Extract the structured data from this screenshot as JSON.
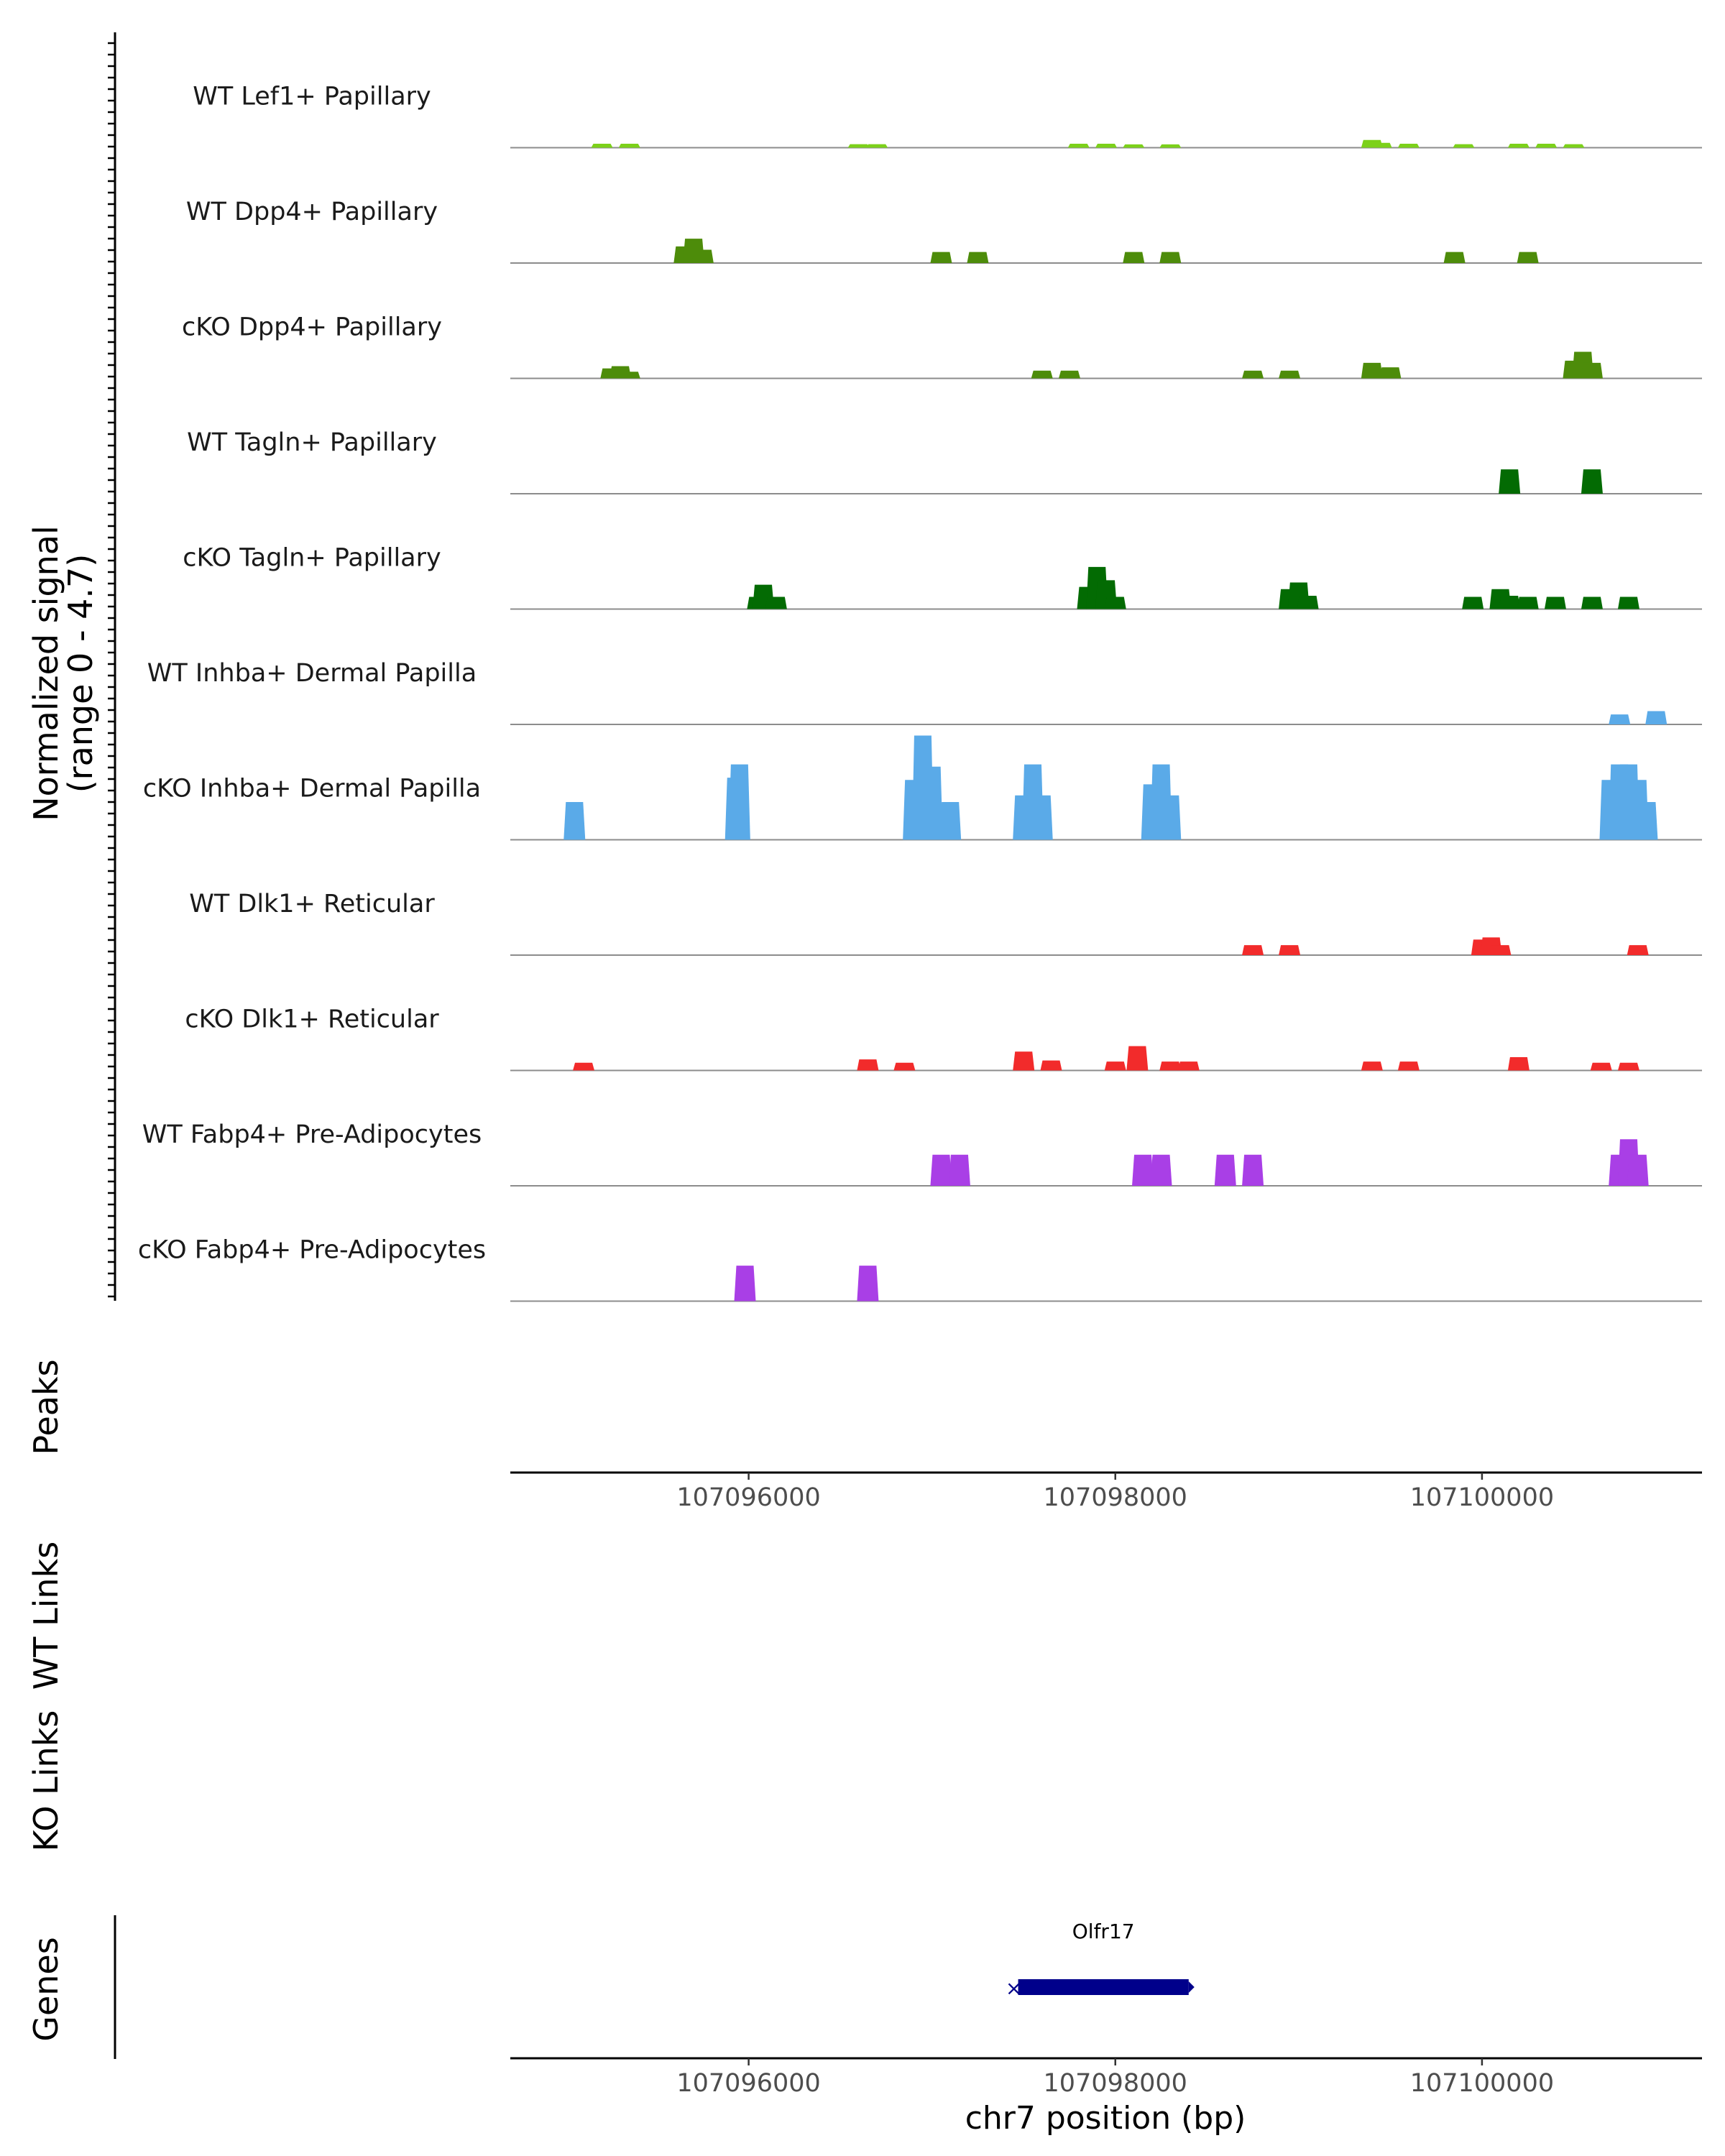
{
  "chart_data": {
    "type": "area",
    "title": "",
    "chromosome": "chr7",
    "xlim": [
      107094700,
      107101200
    ],
    "xticks": [
      107096000,
      107098000,
      107100000
    ],
    "xtick_labels": [
      "107096000",
      "107098000",
      "107100000"
    ],
    "xlabel": "chr7 position (bp)",
    "ylabel_line1": "Normalized signal",
    "ylabel_line2": "(range 0 - 4.7)",
    "ylim": [
      0,
      4.7
    ],
    "section_labels": {
      "peaks": "Peaks",
      "wt_links": "WT Links",
      "ko_links": "KO Links",
      "genes": "Genes"
    },
    "series": [
      {
        "name": "WT Lef1+ Papillary",
        "color": "#7cd11a",
        "peaks": [
          [
            107095200,
            0.18
          ],
          [
            107095350,
            0.18
          ],
          [
            107096600,
            0.16
          ],
          [
            107096700,
            0.16
          ],
          [
            107097800,
            0.18
          ],
          [
            107097950,
            0.18
          ],
          [
            107098100,
            0.15
          ],
          [
            107098300,
            0.15
          ],
          [
            107099400,
            0.35
          ],
          [
            107099450,
            0.22
          ],
          [
            107099600,
            0.18
          ],
          [
            107099900,
            0.16
          ],
          [
            107100200,
            0.18
          ],
          [
            107100350,
            0.18
          ],
          [
            107100500,
            0.16
          ]
        ]
      },
      {
        "name": "WT Dpp4+ Papillary",
        "color": "#4d8c0a",
        "peaks": [
          [
            107095650,
            0.75
          ],
          [
            107095700,
            1.1
          ],
          [
            107095750,
            0.6
          ],
          [
            107097050,
            0.5
          ],
          [
            107097250,
            0.5
          ],
          [
            107098100,
            0.5
          ],
          [
            107098300,
            0.5
          ],
          [
            107099850,
            0.5
          ],
          [
            107100250,
            0.5
          ]
        ]
      },
      {
        "name": "cKO Dpp4+ Papillary",
        "color": "#4d8c0a",
        "peaks": [
          [
            107095250,
            0.45
          ],
          [
            107095300,
            0.55
          ],
          [
            107095350,
            0.3
          ],
          [
            107097600,
            0.35
          ],
          [
            107097750,
            0.35
          ],
          [
            107098750,
            0.35
          ],
          [
            107098950,
            0.35
          ],
          [
            107099400,
            0.7
          ],
          [
            107099500,
            0.5
          ],
          [
            107100500,
            0.8
          ],
          [
            107100550,
            1.2
          ],
          [
            107100600,
            0.7
          ]
        ]
      },
      {
        "name": "WT Tagln+ Papillary",
        "color": "#036b03",
        "peaks": [
          [
            107100150,
            1.1
          ],
          [
            107100600,
            1.1
          ]
        ]
      },
      {
        "name": "cKO Tagln+ Papillary",
        "color": "#036b03",
        "peaks": [
          [
            107096050,
            0.55
          ],
          [
            107096080,
            1.1
          ],
          [
            107096150,
            0.55
          ],
          [
            107097850,
            1.0
          ],
          [
            107097900,
            1.9
          ],
          [
            107097950,
            1.3
          ],
          [
            107098000,
            0.55
          ],
          [
            107098950,
            0.9
          ],
          [
            107099000,
            1.2
          ],
          [
            107099050,
            0.6
          ],
          [
            107099950,
            0.55
          ],
          [
            107100100,
            0.9
          ],
          [
            107100150,
            0.6
          ],
          [
            107100250,
            0.55
          ],
          [
            107100400,
            0.55
          ],
          [
            107100600,
            0.55
          ],
          [
            107100800,
            0.55
          ]
        ]
      },
      {
        "name": "WT Inhba+ Dermal Papilla",
        "color": "#5aaae8",
        "peaks": [
          [
            107100750,
            0.45
          ],
          [
            107100950,
            0.6
          ]
        ]
      },
      {
        "name": "cKO Inhba+ Dermal Papilla",
        "color": "#5aaae8",
        "peaks": [
          [
            107095050,
            1.7
          ],
          [
            107095930,
            2.8
          ],
          [
            107095950,
            3.4
          ],
          [
            107096900,
            2.7
          ],
          [
            107096950,
            4.7
          ],
          [
            107097000,
            3.3
          ],
          [
            107097100,
            1.7
          ],
          [
            107097500,
            2.0
          ],
          [
            107097550,
            3.4
          ],
          [
            107097600,
            2.0
          ],
          [
            107098200,
            2.5
          ],
          [
            107098250,
            3.4
          ],
          [
            107098300,
            2.0
          ],
          [
            107100700,
            2.7
          ],
          [
            107100750,
            3.4
          ],
          [
            107100800,
            3.4
          ],
          [
            107100850,
            2.7
          ],
          [
            107100900,
            1.7
          ]
        ]
      },
      {
        "name": "WT Dlk1+ Reticular",
        "color": "#f22b2b",
        "peaks": [
          [
            107098750,
            0.45
          ],
          [
            107098950,
            0.45
          ],
          [
            107100000,
            0.7
          ],
          [
            107100050,
            0.8
          ],
          [
            107100100,
            0.45
          ],
          [
            107100850,
            0.45
          ]
        ]
      },
      {
        "name": "cKO Dlk1+ Reticular",
        "color": "#f22b2b",
        "peaks": [
          [
            107095100,
            0.35
          ],
          [
            107096650,
            0.5
          ],
          [
            107096850,
            0.35
          ],
          [
            107097500,
            0.85
          ],
          [
            107097650,
            0.45
          ],
          [
            107098000,
            0.4
          ],
          [
            107098120,
            1.1
          ],
          [
            107098300,
            0.4
          ],
          [
            107098400,
            0.4
          ],
          [
            107099400,
            0.4
          ],
          [
            107099600,
            0.4
          ],
          [
            107100200,
            0.6
          ],
          [
            107100650,
            0.35
          ],
          [
            107100800,
            0.35
          ]
        ]
      },
      {
        "name": "WT Fabp4+ Pre-Adipocytes",
        "color": "#a93fe6",
        "peaks": [
          [
            107097050,
            1.4
          ],
          [
            107097150,
            1.4
          ],
          [
            107098150,
            1.4
          ],
          [
            107098250,
            1.4
          ],
          [
            107098600,
            1.4
          ],
          [
            107098750,
            1.4
          ],
          [
            107100750,
            1.4
          ],
          [
            107100800,
            2.1
          ],
          [
            107100850,
            1.4
          ]
        ]
      },
      {
        "name": "cKO Fabp4+ Pre-Adipocytes",
        "color": "#a93fe6",
        "peaks": [
          [
            107095980,
            1.6
          ],
          [
            107096650,
            1.6
          ]
        ]
      }
    ],
    "genes": [
      {
        "name": "Olfr17",
        "start": 107097470,
        "end": 107098400,
        "strand": "-",
        "color": "#00008b"
      }
    ]
  }
}
